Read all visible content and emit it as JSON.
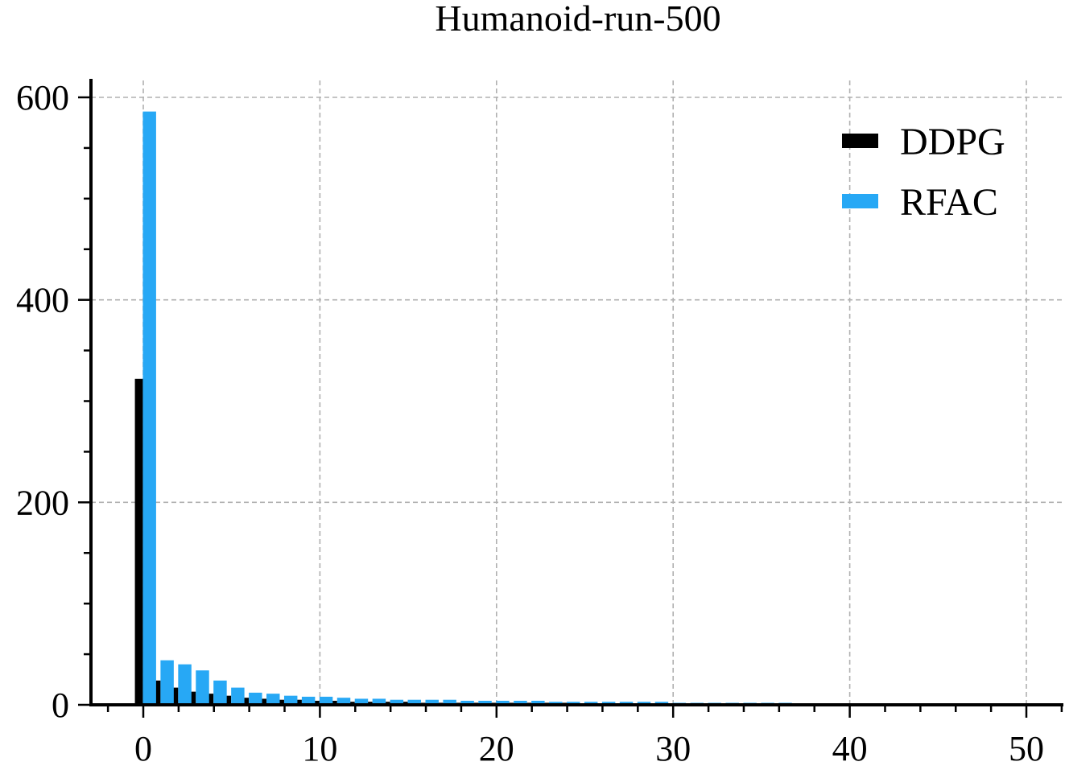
{
  "chart_data": {
    "type": "bar",
    "title": "Humanoid-run-500",
    "xlabel": "",
    "ylabel": "",
    "xlim": [
      -3,
      52
    ],
    "ylim": [
      0,
      620
    ],
    "xticks": [
      0,
      10,
      20,
      30,
      40,
      50
    ],
    "yticks": [
      0,
      200,
      400,
      600
    ],
    "x_minor_step": 2,
    "y_minor_step": 50,
    "grid": true,
    "legend_position": "top-right",
    "series": [
      {
        "name": "DDPG",
        "color": "#000000",
        "offset": -0.25,
        "width": 0.45,
        "x": [
          0,
          1,
          2,
          3,
          4,
          5,
          6,
          7,
          8,
          9,
          10,
          11,
          12,
          13,
          14,
          15,
          16,
          17,
          18,
          19,
          20,
          21,
          22,
          23,
          24,
          25,
          26,
          27,
          28,
          29,
          30,
          31,
          32,
          33,
          34,
          35,
          36,
          37,
          38,
          39,
          40,
          41,
          42,
          43,
          44,
          45,
          46,
          47,
          48,
          49,
          50
        ],
        "values": [
          322,
          24,
          17,
          13,
          11,
          9,
          7,
          6,
          5,
          5,
          4,
          4,
          3,
          3,
          3,
          3,
          2,
          2,
          2,
          2,
          2,
          2,
          2,
          2,
          2,
          1,
          1,
          1,
          1,
          1,
          1,
          1,
          1,
          1,
          1,
          1,
          1,
          1,
          1,
          1,
          1,
          1,
          1,
          1,
          1,
          1,
          1,
          1,
          1,
          1,
          1
        ]
      },
      {
        "name": "RFAC",
        "color": "#27a8f5",
        "offset": 0.35,
        "width": 0.75,
        "x": [
          0,
          1,
          2,
          3,
          4,
          5,
          6,
          7,
          8,
          9,
          10,
          11,
          12,
          13,
          14,
          15,
          16,
          17,
          18,
          19,
          20,
          21,
          22,
          23,
          24,
          25,
          26,
          27,
          28,
          29,
          30,
          31,
          32,
          33,
          34,
          35,
          36,
          37
        ],
        "values": [
          586,
          44,
          40,
          34,
          24,
          17,
          12,
          11,
          9,
          8,
          8,
          7,
          6,
          6,
          5,
          5,
          5,
          5,
          4,
          4,
          4,
          4,
          4,
          3,
          3,
          3,
          3,
          3,
          3,
          3,
          2,
          2,
          2,
          2,
          2,
          2,
          2,
          1
        ]
      }
    ]
  }
}
